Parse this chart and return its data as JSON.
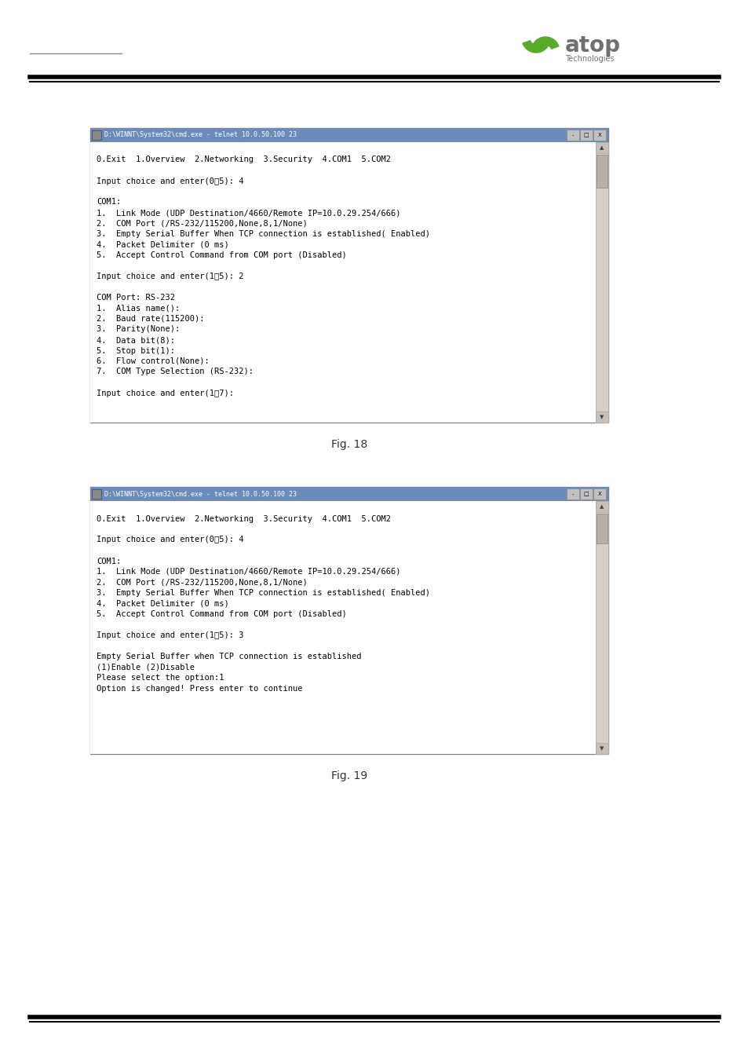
{
  "page_bg": "#ffffff",
  "thin_line_color": "#888888",
  "header_bar_thick_color": "#000000",
  "footer_bar_thick_color": "#000000",
  "fig1_title": "D:\\WINNT\\System32\\cmd.exe - telnet 10.0.50.100 23",
  "fig1_title_bg": "#6b8cba",
  "fig1_content": [
    "",
    "0.Exit  1.Overview  2.Networking  3.Security  4.COM1  5.COM2",
    "",
    "Input choice and enter(0˅5): 4",
    "",
    "COM1:",
    "1.  Link Mode (UDP Destination/4660/Remote IP=10.0.29.254/666)",
    "2.  COM Port (/RS-232/115200,None,8,1/None)",
    "3.  Empty Serial Buffer When TCP connection is established( Enabled)",
    "4.  Packet Delimiter (0 ms)",
    "5.  Accept Control Command from COM port (Disabled)",
    "",
    "Input choice and enter(1˅5): 2",
    "",
    "COM Port: RS-232",
    "1.  Alias name():",
    "2.  Baud rate(115200):",
    "3.  Parity(None):",
    "4.  Data bit(8):",
    "5.  Stop bit(1):",
    "6.  Flow control(None):",
    "7.  COM Type Selection (RS-232):",
    "",
    "Input choice and enter(1˅7):"
  ],
  "fig2_title": "D:\\WINNT\\System32\\cmd.exe - telnet 10.0.50.100 23",
  "fig2_title_bg": "#6b8cba",
  "fig2_content": [
    "",
    "0.Exit  1.Overview  2.Networking  3.Security  4.COM1  5.COM2",
    "",
    "Input choice and enter(0˅5): 4",
    "",
    "COM1:",
    "1.  Link Mode (UDP Destination/4660/Remote IP=10.0.29.254/666)",
    "2.  COM Port (/RS-232/115200,None,8,1/None)",
    "3.  Empty Serial Buffer When TCP connection is established( Enabled)",
    "4.  Packet Delimiter (0 ms)",
    "5.  Accept Control Command from COM port (Disabled)",
    "",
    "Input choice and enter(1˅5): 3",
    "",
    "Empty Serial Buffer when TCP connection is established",
    "(1)Enable (2)Disable",
    "Please select the option:1",
    "Option is changed! Press enter to continue"
  ],
  "caption1": "Fig. 18",
  "caption2": "Fig. 19",
  "logo_green": "#5aaa2a",
  "logo_gray": "#707070"
}
